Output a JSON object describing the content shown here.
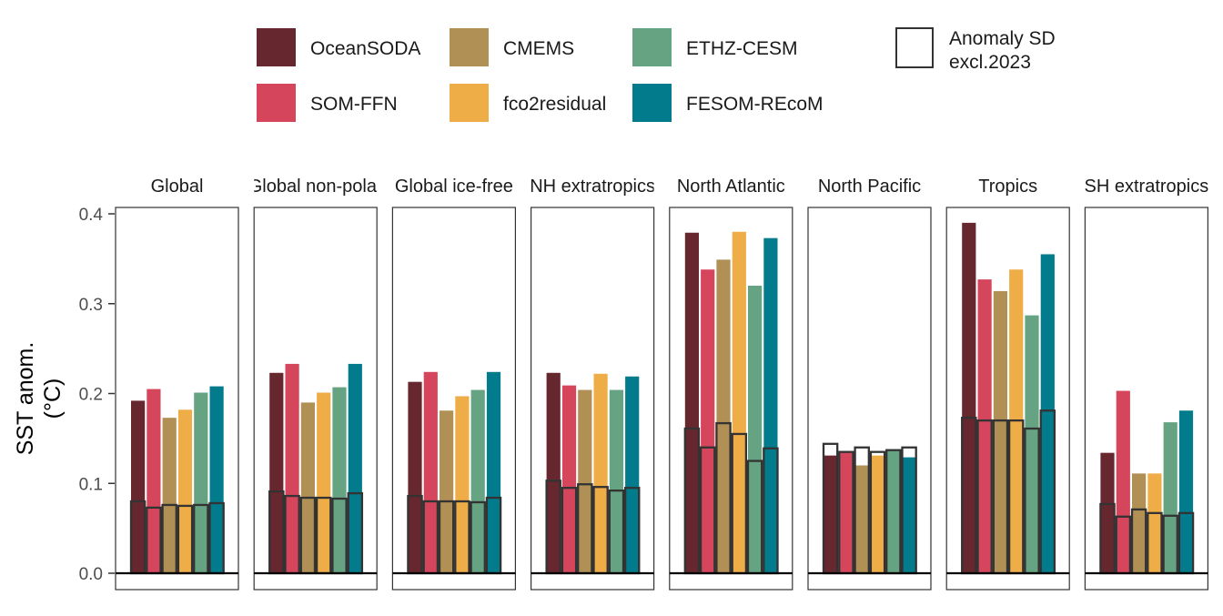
{
  "chart_data": {
    "type": "bar",
    "ylabel": "SST anom.\n(°C)",
    "ylim": [
      0,
      0.41
    ],
    "y_ticks": [
      0.0,
      0.1,
      0.2,
      0.3,
      0.4
    ],
    "y_tick_labels": [
      "0.0",
      "0.1",
      "0.2",
      "0.3",
      "0.4"
    ],
    "legend_position": "top",
    "series": [
      {
        "name": "OceanSODA",
        "color": "#67272f"
      },
      {
        "name": "SOM-FFN",
        "color": "#d5465c"
      },
      {
        "name": "CMEMS",
        "color": "#b09055"
      },
      {
        "name": "fco2residual",
        "color": "#efad48"
      },
      {
        "name": "ETHZ-CESM",
        "color": "#65a382"
      },
      {
        "name": "FESOM-REcoM",
        "color": "#027b8d"
      }
    ],
    "sd_legend_label": [
      "Anomaly SD",
      "excl.2023"
    ],
    "panels": [
      {
        "title": "Global",
        "values": [
          0.192,
          0.205,
          0.173,
          0.182,
          0.201,
          0.208
        ],
        "sd": [
          0.08,
          0.073,
          0.076,
          0.075,
          0.076,
          0.078
        ]
      },
      {
        "title": "Global non-polar",
        "values": [
          0.223,
          0.233,
          0.19,
          0.201,
          0.207,
          0.233
        ],
        "sd": [
          0.091,
          0.086,
          0.084,
          0.084,
          0.083,
          0.089
        ]
      },
      {
        "title": "Global ice-free",
        "values": [
          0.213,
          0.224,
          0.181,
          0.197,
          0.204,
          0.224
        ],
        "sd": [
          0.086,
          0.08,
          0.08,
          0.08,
          0.079,
          0.084
        ]
      },
      {
        "title": "NH extratropics",
        "values": [
          0.223,
          0.209,
          0.204,
          0.222,
          0.204,
          0.219
        ],
        "sd": [
          0.103,
          0.095,
          0.099,
          0.096,
          0.092,
          0.095
        ]
      },
      {
        "title": "North Atlantic",
        "values": [
          0.379,
          0.338,
          0.349,
          0.38,
          0.32,
          0.373
        ],
        "sd": [
          0.161,
          0.14,
          0.167,
          0.155,
          0.125,
          0.139
        ]
      },
      {
        "title": "North Pacific",
        "values": [
          0.131,
          0.135,
          0.12,
          0.131,
          0.138,
          0.129
        ],
        "sd": [
          0.144,
          0.135,
          0.14,
          0.135,
          0.137,
          0.14
        ]
      },
      {
        "title": "Tropics",
        "values": [
          0.39,
          0.327,
          0.314,
          0.338,
          0.287,
          0.355
        ],
        "sd": [
          0.173,
          0.17,
          0.17,
          0.17,
          0.161,
          0.181
        ]
      },
      {
        "title": "SH extratropics",
        "values": [
          0.134,
          0.203,
          0.111,
          0.111,
          0.168,
          0.181
        ],
        "sd": [
          0.077,
          0.063,
          0.071,
          0.067,
          0.064,
          0.067
        ]
      }
    ]
  }
}
